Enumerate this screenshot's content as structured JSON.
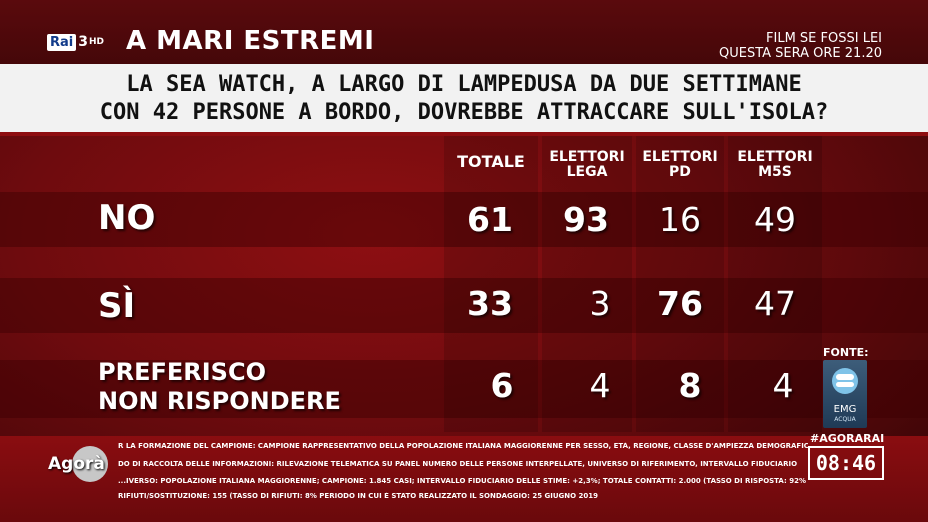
{
  "channel": {
    "brand": "Rai",
    "number": "3",
    "hd": "HD"
  },
  "show_title": "A MARI ESTREMI",
  "promo": {
    "line1": "FILM SE FOSSI LEI",
    "line2": "QUESTA SERA ORE 21.20"
  },
  "question": {
    "line1": "LA SEA WATCH, A LARGO DI LAMPEDUSA DA DUE SETTIMANE",
    "line2": "CON 42 PERSONE A BORDO, DOVREBBE ATTRACCARE SULL'ISOLA?"
  },
  "table": {
    "columns": [
      {
        "line1": "TOTALE",
        "line2": ""
      },
      {
        "line1": "ELETTORI",
        "line2": "LEGA"
      },
      {
        "line1": "ELETTORI",
        "line2": "PD"
      },
      {
        "line1": "ELETTORI",
        "line2": "M5S"
      }
    ],
    "rows": [
      {
        "label1": "NO",
        "label2": "",
        "values": [
          "61",
          "93",
          "16",
          "49"
        ]
      },
      {
        "label1": "SÌ",
        "label2": "",
        "values": [
          "33",
          "3",
          "76",
          "47"
        ]
      },
      {
        "label1": "PREFERISCO",
        "label2": "NON RISPONDERE",
        "values": [
          "6",
          "4",
          "8",
          "4"
        ]
      }
    ]
  },
  "source": {
    "label": "FONTE:",
    "logo_text": "EMG",
    "logo_sub": "ACQUA"
  },
  "program_logo": "Agorà",
  "notes": [
    "R LA FORMAZIONE DEL CAMPIONE: CAMPIONE RAPPRESENTATIVO DELLA POPOLAZIONE ITALIANA MAGGIORENNE PER SESSO, ETÀ, REGIONE, CLASSE D'AMPIEZZA DEMOGRAFICA DEI COMUNI",
    "DO DI RACCOLTA DELLE INFORMAZIONI: RILEVAZIONE TELEMATICA SU PANEL NUMERO DELLE PERSONE INTERPELLATE, UNIVERSO DI RIFERIMENTO, INTERVALLO FIDUCIARIO",
    "...IVERSO: POPOLAZIONE ITALIANA MAGGIORENNE; CAMPIONE: 1.845 CASI; INTERVALLO FIDUCIARIO DELLE STIME: +2,3%; TOTALE CONTATTI: 2.000 (TASSO DI RISPOSTA: 92%",
    "RIFIUTI/SOSTITUZIONE: 155 (TASSO DI RIFIUTI: 8% PERIODO IN CUI È STATO REALIZZATO IL SONDAGGIO: 25 GIUGNO 2019"
  ],
  "hashtag": "#AGORARAI",
  "clock": "08:46"
}
